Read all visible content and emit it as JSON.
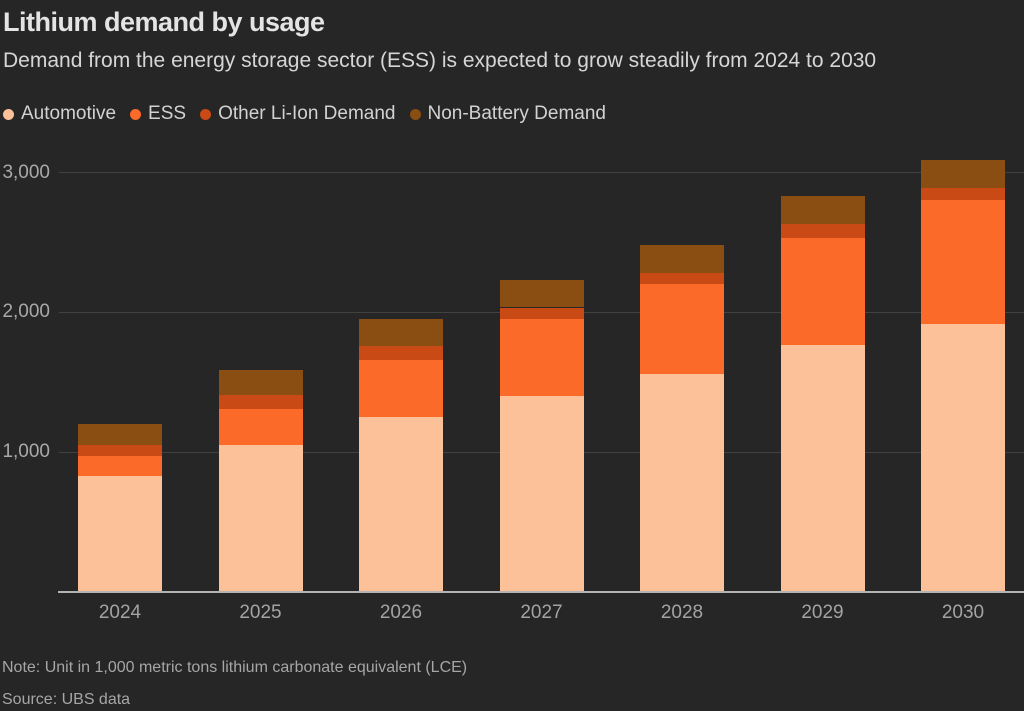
{
  "header": {
    "title": "Lithium demand by usage",
    "subtitle": "Demand from the energy storage sector (ESS) is expected to grow steadily from 2024 to 2030"
  },
  "legend": {
    "items": [
      {
        "label": "Automotive",
        "color": "#fcc199"
      },
      {
        "label": "ESS",
        "color": "#fc6a29"
      },
      {
        "label": "Other Li-Ion Demand",
        "color": "#c94a14"
      },
      {
        "label": "Non-Battery Demand",
        "color": "#8a4d12"
      }
    ]
  },
  "chart_data": {
    "type": "bar",
    "stacked": true,
    "title": "Lithium demand by usage",
    "subtitle": "Demand from the energy storage sector (ESS) is expected to grow steadily from 2024 to 2030",
    "unit_note": "Values in 1,000 metric tons LCE",
    "categories": [
      "2024",
      "2025",
      "2026",
      "2027",
      "2028",
      "2029",
      "2030"
    ],
    "series": [
      {
        "name": "Automotive",
        "color": "#fcc199",
        "values": [
          830,
          1055,
          1255,
          1405,
          1560,
          1770,
          1920
        ]
      },
      {
        "name": "ESS",
        "color": "#fc6a29",
        "values": [
          140,
          255,
          405,
          545,
          645,
          765,
          885
        ]
      },
      {
        "name": "Other Li-Ion Demand",
        "color": "#c94a14",
        "values": [
          85,
          100,
          100,
          85,
          80,
          100,
          85
        ]
      },
      {
        "name": "Non-Battery Demand",
        "color": "#8a4d12",
        "values": [
          150,
          180,
          190,
          195,
          200,
          195,
          200
        ]
      }
    ],
    "totals": [
      1205,
      1590,
      1950,
      2230,
      2485,
      2830,
      3090
    ],
    "yticks": [
      {
        "value": 1000,
        "label": "1,000"
      },
      {
        "value": 2000,
        "label": "2,000"
      },
      {
        "value": 3000,
        "label": "3,000"
      }
    ],
    "ylim": [
      0,
      3240
    ],
    "grid": "horizontal",
    "legend_position": "top"
  },
  "footer": {
    "note": "Note: Unit in 1,000 metric tons lithium carbonate equivalent (LCE)",
    "source": "Source: UBS data"
  }
}
